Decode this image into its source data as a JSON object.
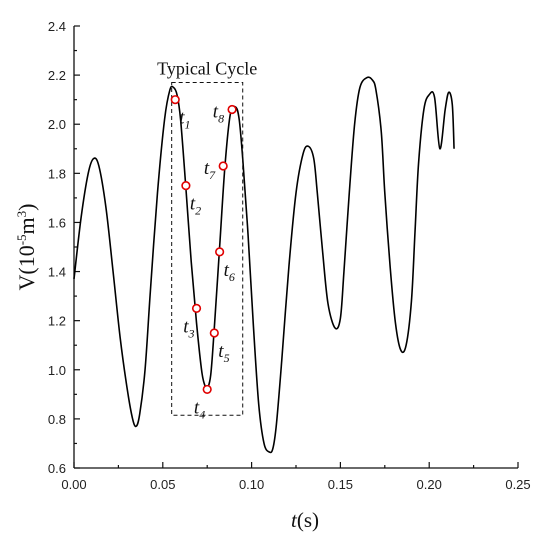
{
  "chart_data": {
    "type": "line",
    "xlabel": {
      "var": "t",
      "unit": "(s)"
    },
    "ylabel": {
      "main": "V(10",
      "exp": "-5",
      "unit": "m",
      "unit_exp": "3",
      "close": ")"
    },
    "xlim": [
      0,
      0.25
    ],
    "ylim": [
      0.6,
      2.4
    ],
    "xticks": [
      0.0,
      0.05,
      0.1,
      0.15,
      0.2,
      0.25
    ],
    "xtick_labels": [
      "0.00",
      "0.05",
      "0.10",
      "0.15",
      "0.20",
      "0.25"
    ],
    "yticks": [
      0.6,
      0.8,
      1.0,
      1.2,
      1.4,
      1.6,
      1.8,
      2.0,
      2.2,
      2.4
    ],
    "ytick_labels": [
      "0.6",
      "0.8",
      "1.0",
      "1.2",
      "1.4",
      "1.6",
      "1.8",
      "2.0",
      "2.2",
      "2.4"
    ],
    "grid": false,
    "series": [
      {
        "x": [
          0.0,
          0.004,
          0.008,
          0.011,
          0.014,
          0.018,
          0.022,
          0.026,
          0.03,
          0.033,
          0.035,
          0.037,
          0.04,
          0.043,
          0.047,
          0.051,
          0.054,
          0.056,
          0.058,
          0.06,
          0.063,
          0.066,
          0.069,
          0.072,
          0.074,
          0.075,
          0.077,
          0.079,
          0.082,
          0.085,
          0.088,
          0.091,
          0.093,
          0.095,
          0.098,
          0.101,
          0.104,
          0.107,
          0.11,
          0.112,
          0.114,
          0.117,
          0.121,
          0.125,
          0.129,
          0.132,
          0.135,
          0.137,
          0.14,
          0.143,
          0.147,
          0.15,
          0.152,
          0.155,
          0.158,
          0.161,
          0.165,
          0.168,
          0.17,
          0.173,
          0.175,
          0.178,
          0.181,
          0.184,
          0.187,
          0.19,
          0.192,
          0.194,
          0.197,
          0.2,
          0.203,
          0.206,
          0.209,
          0.211,
          0.213,
          0.214
        ],
        "y": [
          1.37,
          1.62,
          1.8,
          1.86,
          1.83,
          1.66,
          1.4,
          1.13,
          0.92,
          0.8,
          0.77,
          0.82,
          1.0,
          1.32,
          1.72,
          2.02,
          2.14,
          2.15,
          2.12,
          2.02,
          1.74,
          1.44,
          1.19,
          0.99,
          0.93,
          0.92,
          0.98,
          1.17,
          1.5,
          1.83,
          2.04,
          2.07,
          2.02,
          1.86,
          1.55,
          1.18,
          0.86,
          0.7,
          0.665,
          0.68,
          0.78,
          1.04,
          1.42,
          1.72,
          1.88,
          1.91,
          1.86,
          1.72,
          1.48,
          1.27,
          1.17,
          1.21,
          1.4,
          1.72,
          2.0,
          2.15,
          2.19,
          2.18,
          2.14,
          1.97,
          1.72,
          1.42,
          1.19,
          1.08,
          1.1,
          1.28,
          1.56,
          1.84,
          2.06,
          2.12,
          2.11,
          1.9,
          2.06,
          2.13,
          2.08,
          1.9
        ]
      }
    ],
    "markers": [
      {
        "label": "t",
        "sub": "1",
        "x": 0.057,
        "y": 2.1,
        "lpos": "below-right"
      },
      {
        "label": "t",
        "sub": "2",
        "x": 0.063,
        "y": 1.75,
        "lpos": "below-right"
      },
      {
        "label": "t",
        "sub": "3",
        "x": 0.069,
        "y": 1.25,
        "lpos": "below-left"
      },
      {
        "label": "t",
        "sub": "4",
        "x": 0.075,
        "y": 0.92,
        "lpos": "below-left"
      },
      {
        "label": "t",
        "sub": "5",
        "x": 0.079,
        "y": 1.15,
        "lpos": "below-right"
      },
      {
        "label": "t",
        "sub": "6",
        "x": 0.082,
        "y": 1.48,
        "lpos": "below-right"
      },
      {
        "label": "t",
        "sub": "7",
        "x": 0.084,
        "y": 1.83,
        "lpos": "left"
      },
      {
        "label": "t",
        "sub": "8",
        "x": 0.089,
        "y": 2.06,
        "lpos": "left"
      }
    ],
    "annotation": {
      "text": "Typical Cycle",
      "box": {
        "x0": 0.055,
        "x1": 0.095,
        "y0": 0.815,
        "y1": 2.17
      }
    },
    "colors": {
      "line": "#000000",
      "marker": "#e00000",
      "axes": "#111111"
    }
  }
}
